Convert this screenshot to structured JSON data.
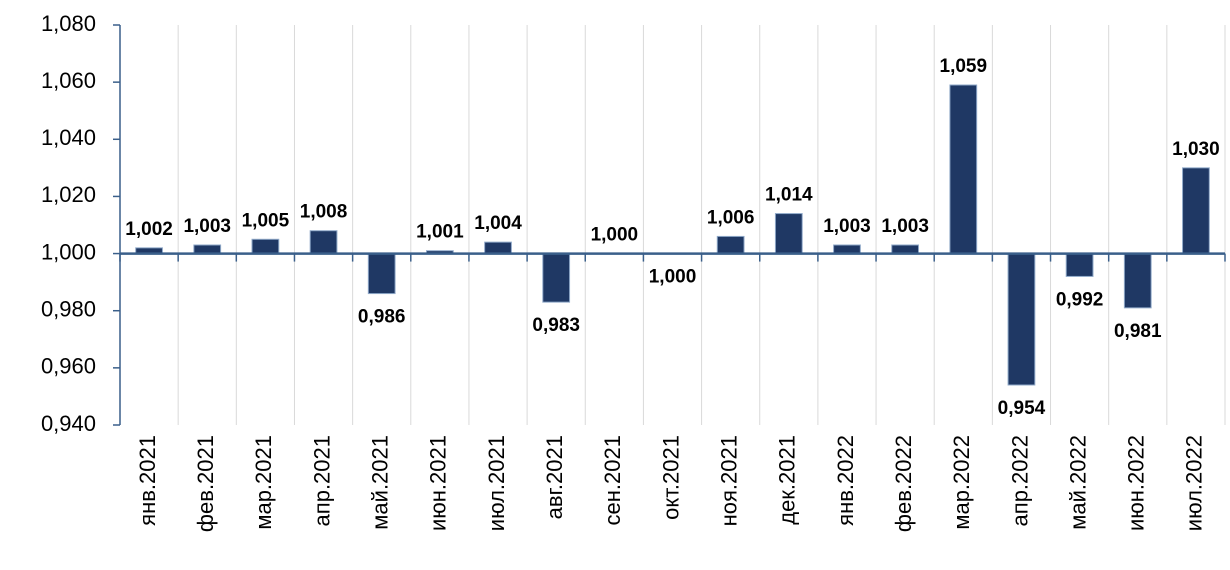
{
  "chart_data": {
    "type": "bar",
    "categories": [
      "янв.2021",
      "фев.2021",
      "мар.2021",
      "апр.2021",
      "май.2021",
      "июн.2021",
      "июл.2021",
      "авг.2021",
      "сен.2021",
      "окт.2021",
      "ноя.2021",
      "дек.2021",
      "янв.2022",
      "фев.2022",
      "мар.2022",
      "апр.2022",
      "май.2022",
      "июн.2022",
      "июл.2022"
    ],
    "values": [
      1.002,
      1.003,
      1.005,
      1.008,
      0.986,
      1.001,
      1.004,
      0.983,
      1.0,
      1.0,
      1.006,
      1.014,
      1.003,
      1.003,
      1.059,
      0.954,
      0.992,
      0.981,
      1.03
    ],
    "value_labels": [
      "1,002",
      "1,003",
      "1,005",
      "1,008",
      "0,986",
      "1,001",
      "1,004",
      "0,983",
      "1,000",
      "1,000",
      "1,006",
      "1,014",
      "1,003",
      "1,003",
      "1,059",
      "0,954",
      "0,992",
      "0,981",
      "1,030"
    ],
    "color": "#1f3864",
    "baseline": 1,
    "ylim": [
      0.94,
      1.08
    ],
    "yticks": [
      {
        "value": 0.94,
        "label": "0,940"
      },
      {
        "value": 0.96,
        "label": "0,960"
      },
      {
        "value": 0.98,
        "label": "0,980"
      },
      {
        "value": 1.0,
        "label": "1,000"
      },
      {
        "value": 1.02,
        "label": "1,020"
      },
      {
        "value": 1.04,
        "label": "1,040"
      },
      {
        "value": 1.06,
        "label": "1,060"
      },
      {
        "value": 1.08,
        "label": "1,080"
      }
    ],
    "grid": true
  }
}
